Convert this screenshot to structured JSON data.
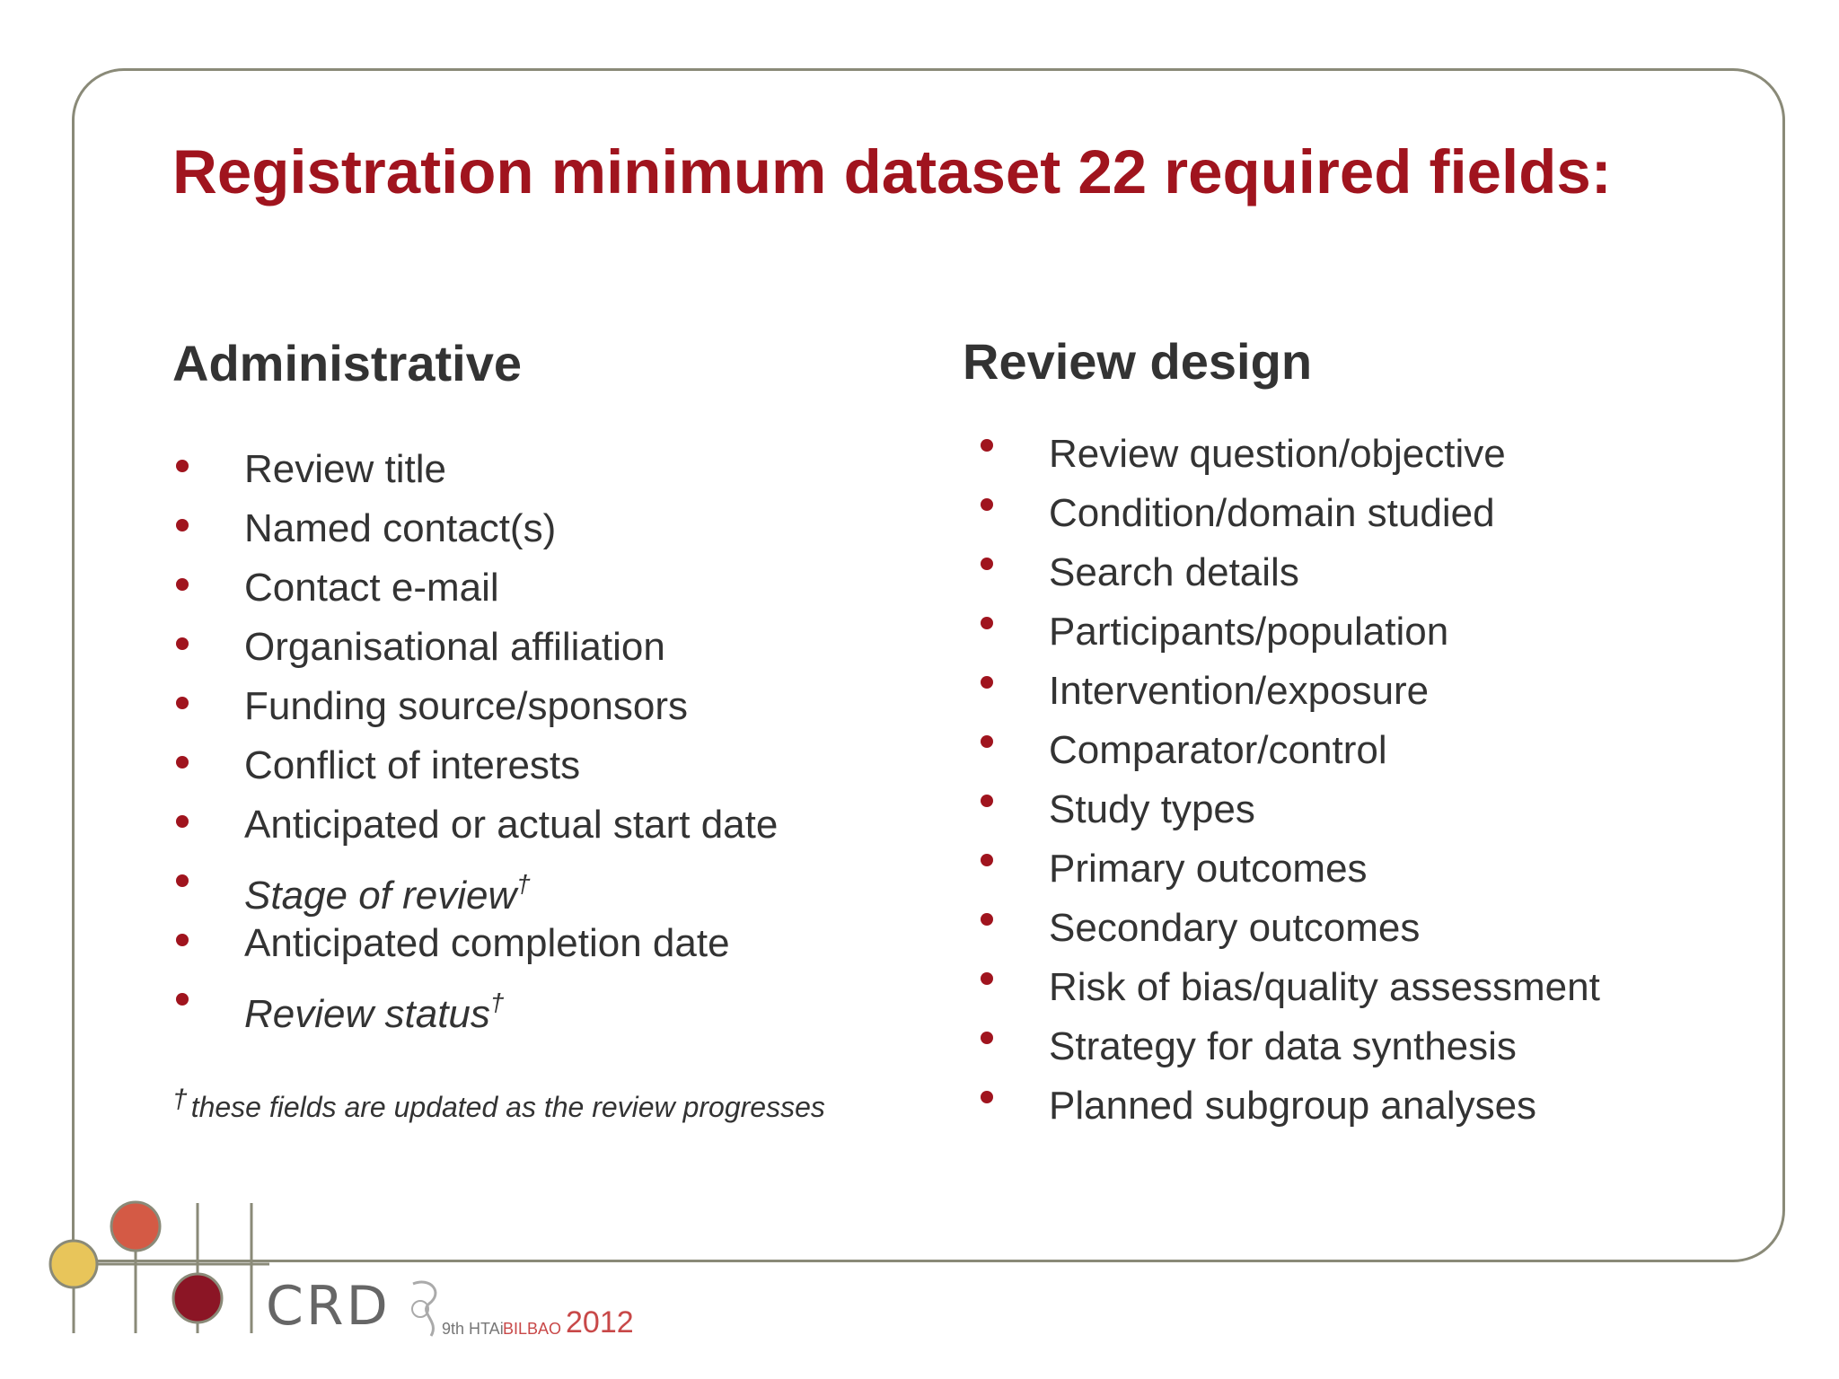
{
  "slide": {
    "title": "Registration minimum dataset 22 required fields:"
  },
  "administrative": {
    "heading": "Administrative",
    "items": [
      {
        "label": "Review title",
        "dagger": ""
      },
      {
        "label": "Named contact(s)",
        "dagger": ""
      },
      {
        "label": "Contact e-mail",
        "dagger": ""
      },
      {
        "label": "Organisational affiliation",
        "dagger": ""
      },
      {
        "label": "Funding source/sponsors",
        "dagger": ""
      },
      {
        "label": "Conflict of interests",
        "dagger": ""
      },
      {
        "label": "Anticipated or actual start date",
        "dagger": ""
      },
      {
        "label": "Stage of review",
        "dagger": "†"
      },
      {
        "label": "Anticipated completion date",
        "dagger": ""
      },
      {
        "label": "Review status",
        "dagger": "†"
      }
    ],
    "footnote_mark": "†",
    "footnote": "these fields are updated as the review progresses"
  },
  "review_design": {
    "heading": "Review design",
    "items": [
      {
        "label": "Review question/objective"
      },
      {
        "label": "Condition/domain studied"
      },
      {
        "label": "Search details"
      },
      {
        "label": "Participants/population"
      },
      {
        "label": "Intervention/exposure"
      },
      {
        "label": "Comparator/control"
      },
      {
        "label": "Study types"
      },
      {
        "label": "Primary outcomes"
      },
      {
        "label": "Secondary outcomes"
      },
      {
        "label": "Risk of bias/quality assessment"
      },
      {
        "label": "Strategy for data synthesis"
      },
      {
        "label": "Planned subgroup analyses"
      }
    ]
  },
  "branding": {
    "crd_logo_text": "CRD",
    "hta_prefix": "9th HTAi",
    "hta_city": "BILBAO",
    "hta_year": "2012"
  },
  "colors": {
    "accent_red": "#a0141e",
    "text_dark": "#333333",
    "frame_gray": "#8a8a78",
    "circle_yellow": "#e8c55a",
    "circle_orange": "#d45a45",
    "circle_darkred": "#8b1525"
  }
}
